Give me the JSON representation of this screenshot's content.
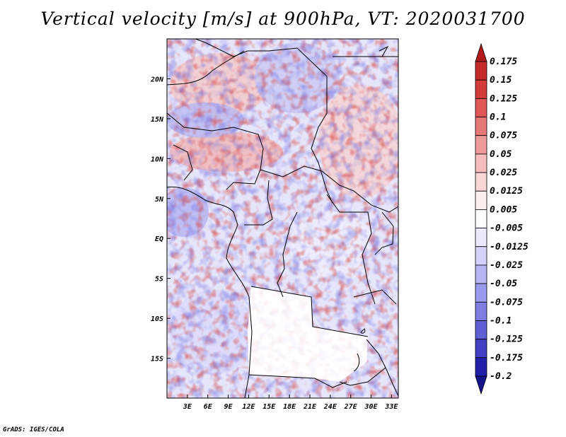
{
  "chart_data": {
    "type": "heatmap",
    "title": "Vertical velocity [m/s] at 900hPa, VT: 2020031700",
    "variable": "Vertical velocity",
    "units": "m/s",
    "level": "900hPa",
    "valid_time": "2020031700",
    "lon_range": [
      0,
      34
    ],
    "lat_range": [
      -20,
      25
    ],
    "x_ticks": [
      {
        "value": 3,
        "label": "3E"
      },
      {
        "value": 6,
        "label": "6E"
      },
      {
        "value": 9,
        "label": "9E"
      },
      {
        "value": 12,
        "label": "12E"
      },
      {
        "value": 15,
        "label": "15E"
      },
      {
        "value": 18,
        "label": "18E"
      },
      {
        "value": 21,
        "label": "21E"
      },
      {
        "value": 24,
        "label": "24E"
      },
      {
        "value": 27,
        "label": "27E"
      },
      {
        "value": 30,
        "label": "30E"
      },
      {
        "value": 33,
        "label": "33E"
      }
    ],
    "y_ticks": [
      {
        "value": 20,
        "label": "20N"
      },
      {
        "value": 15,
        "label": "15N"
      },
      {
        "value": 10,
        "label": "10N"
      },
      {
        "value": 5,
        "label": "5N"
      },
      {
        "value": 0,
        "label": "EQ"
      },
      {
        "value": -5,
        "label": "5S"
      },
      {
        "value": -10,
        "label": "10S"
      },
      {
        "value": -15,
        "label": "15S"
      }
    ],
    "colorbar": {
      "levels_top_to_bottom": [
        "0.175",
        "0.15",
        "0.125",
        "0.1",
        "0.075",
        "0.05",
        "0.025",
        "0.0125",
        "0.005",
        "-0.005",
        "-0.0125",
        "-0.025",
        "-0.05",
        "-0.075",
        "-0.1",
        "-0.125",
        "-0.175",
        "-0.2"
      ],
      "colors_top_to_bottom": [
        "#b01a1a",
        "#c62828",
        "#d43b3b",
        "#e05656",
        "#e87878",
        "#ef9a9a",
        "#f5bcbc",
        "#fad6d6",
        "#fdeeee",
        "#ffffff",
        "#eaeaff",
        "#d2d2fc",
        "#b6b6f6",
        "#9a9aee",
        "#7d7de4",
        "#5f5fd6",
        "#4040c4",
        "#2020aa",
        "#14148c"
      ]
    }
  },
  "footer": {
    "credit": "GrADS: IGES/COLA"
  }
}
